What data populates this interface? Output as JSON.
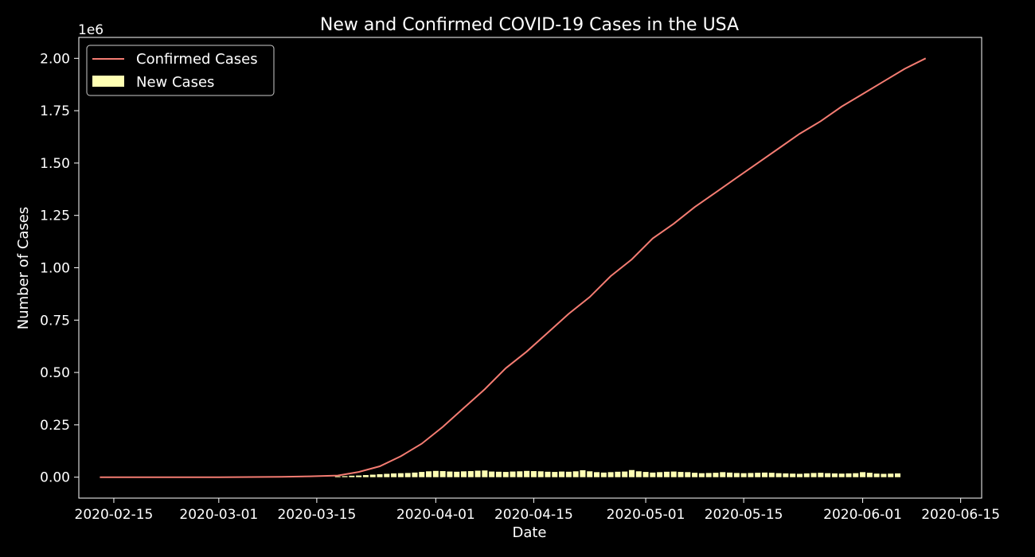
{
  "chart_data": {
    "type": "line",
    "title": "New and Confirmed COVID-19 Cases in the USA",
    "xlabel": "Date",
    "ylabel": "Number of Cases",
    "y_offset_label": "1e6",
    "xlim": [
      "2020-02-10",
      "2020-06-18"
    ],
    "ylim": [
      -0.1,
      2.1
    ],
    "x_ticks": [
      "2020-02-15",
      "2020-03-01",
      "2020-03-15",
      "2020-04-01",
      "2020-04-15",
      "2020-05-01",
      "2020-05-15",
      "2020-06-01",
      "2020-06-15"
    ],
    "y_ticks": [
      "0.00",
      "0.25",
      "0.50",
      "0.75",
      "1.00",
      "1.25",
      "1.50",
      "1.75",
      "2.00"
    ],
    "grid": false,
    "legend_position": "top-left",
    "series": [
      {
        "name": "Confirmed Cases",
        "kind": "line",
        "color": "#f47c72",
        "unit_scale": "1e6",
        "x": [
          "2020-02-13",
          "2020-03-01",
          "2020-03-10",
          "2020-03-14",
          "2020-03-18",
          "2020-03-21",
          "2020-03-24",
          "2020-03-27",
          "2020-03-30",
          "2020-04-02",
          "2020-04-05",
          "2020-04-08",
          "2020-04-11",
          "2020-04-14",
          "2020-04-17",
          "2020-04-20",
          "2020-04-23",
          "2020-04-26",
          "2020-04-29",
          "2020-05-02",
          "2020-05-05",
          "2020-05-08",
          "2020-05-11",
          "2020-05-14",
          "2020-05-17",
          "2020-05-20",
          "2020-05-23",
          "2020-05-26",
          "2020-05-29",
          "2020-06-01",
          "2020-06-04",
          "2020-06-07",
          "2020-06-10"
        ],
        "values": [
          0.0,
          0.0,
          0.002,
          0.004,
          0.008,
          0.025,
          0.052,
          0.1,
          0.16,
          0.24,
          0.33,
          0.42,
          0.52,
          0.6,
          0.69,
          0.78,
          0.86,
          0.96,
          1.04,
          1.14,
          1.21,
          1.29,
          1.36,
          1.43,
          1.5,
          1.57,
          1.64,
          1.7,
          1.77,
          1.83,
          1.89,
          1.95,
          2.0
        ]
      },
      {
        "name": "New Cases",
        "kind": "bar",
        "color": "#ffffb3",
        "unit_scale": "1e6",
        "start": "2020-03-18",
        "values": [
          0.004,
          0.005,
          0.007,
          0.008,
          0.01,
          0.012,
          0.014,
          0.016,
          0.018,
          0.019,
          0.02,
          0.022,
          0.025,
          0.028,
          0.03,
          0.029,
          0.027,
          0.026,
          0.028,
          0.029,
          0.031,
          0.032,
          0.027,
          0.026,
          0.025,
          0.027,
          0.028,
          0.03,
          0.029,
          0.028,
          0.026,
          0.025,
          0.027,
          0.026,
          0.028,
          0.033,
          0.028,
          0.024,
          0.022,
          0.024,
          0.026,
          0.027,
          0.034,
          0.028,
          0.025,
          0.022,
          0.024,
          0.026,
          0.027,
          0.025,
          0.024,
          0.021,
          0.019,
          0.02,
          0.021,
          0.024,
          0.022,
          0.02,
          0.019,
          0.02,
          0.021,
          0.022,
          0.021,
          0.019,
          0.018,
          0.017,
          0.016,
          0.018,
          0.02,
          0.021,
          0.019,
          0.018,
          0.017,
          0.018,
          0.019,
          0.024,
          0.021,
          0.017,
          0.016,
          0.017,
          0.018
        ]
      }
    ]
  }
}
